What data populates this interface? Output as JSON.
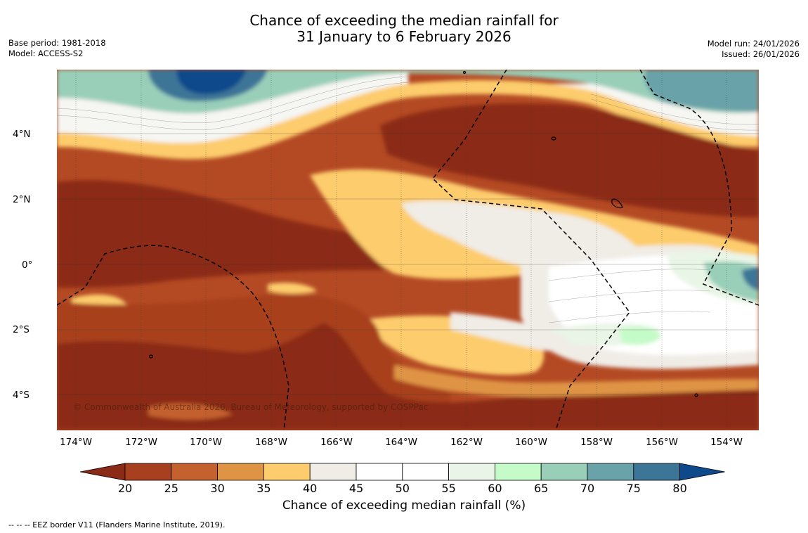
{
  "title": {
    "line1": "Chance of exceeding the median rainfall for",
    "line2": "31 January to 6 February 2026"
  },
  "meta": {
    "base_period": "Base period: 1981-2018",
    "model": "Model: ACCESS-S2",
    "model_run": "Model run: 24/01/2026",
    "issued": "Issued: 26/01/2026"
  },
  "map": {
    "lat_labels": [
      "4°N",
      "2°N",
      "0°",
      "2°S",
      "4°S"
    ],
    "lon_labels": [
      "174°W",
      "172°W",
      "170°W",
      "168°W",
      "166°W",
      "164°W",
      "162°W",
      "160°W",
      "158°W",
      "156°W",
      "154°W"
    ],
    "copyright": "© Commonwealth of Australia 2026, Bureau of Meteorology, supported by COSPPac"
  },
  "colorbar": {
    "ticks": [
      "20",
      "25",
      "30",
      "35",
      "40",
      "45",
      "50",
      "55",
      "60",
      "65",
      "70",
      "75",
      "80"
    ],
    "colors": [
      "#8b2a17",
      "#a8401f",
      "#c4612f",
      "#df9445",
      "#fdcc6c",
      "#f0ece6",
      "#ffffff",
      "#ffffff",
      "#e9f5e6",
      "#c5fbc8",
      "#99cfb9",
      "#6aa2a9",
      "#3d7597",
      "#0e4a8b"
    ],
    "title": "Chance of exceeding median rainfall (%)"
  },
  "footnote": "--  --  -- EEZ border V11 (Flanders Marine Institute, 2019)."
}
